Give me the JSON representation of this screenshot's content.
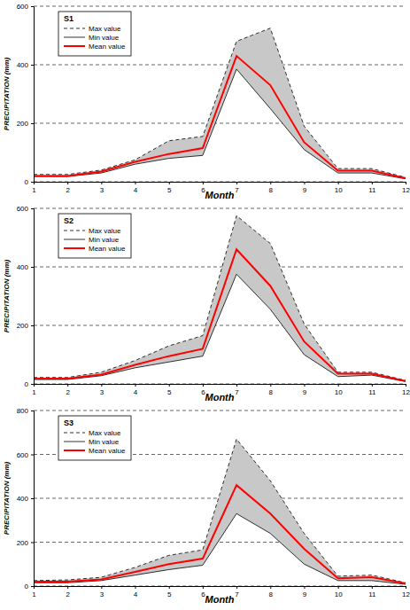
{
  "chart_data": [
    {
      "type": "line",
      "title": "S1",
      "x_label": "Month",
      "y_label": "PRECIPITATION (mm)",
      "x": [
        1,
        2,
        3,
        4,
        5,
        6,
        7,
        8,
        9,
        10,
        11,
        12
      ],
      "xlim": [
        1,
        12
      ],
      "xticks": [
        1,
        2,
        3,
        4,
        5,
        6,
        7,
        8,
        9,
        10,
        11,
        12
      ],
      "ylim": [
        0,
        600
      ],
      "yticks": [
        0,
        200,
        400,
        600
      ],
      "grid": true,
      "legend": "upper left",
      "series": [
        {
          "name": "Max value",
          "color": "#000000",
          "line_style": "dashed",
          "values": [
            25,
            25,
            40,
            75,
            140,
            155,
            480,
            525,
            190,
            45,
            45,
            15
          ]
        },
        {
          "name": "Min value",
          "color": "#000000",
          "line_style": "solid",
          "values": [
            18,
            18,
            30,
            60,
            80,
            90,
            385,
            250,
            110,
            30,
            30,
            10
          ]
        },
        {
          "name": "Mean value",
          "color": "#ff0000",
          "line_style": "solid",
          "values": [
            20,
            20,
            35,
            68,
            95,
            115,
            430,
            330,
            135,
            38,
            38,
            12
          ]
        }
      ]
    },
    {
      "type": "line",
      "title": "S2",
      "x_label": "Month",
      "y_label": "PRECIPITATION (mm)",
      "x": [
        1,
        2,
        3,
        4,
        5,
        6,
        7,
        8,
        9,
        10,
        11,
        12
      ],
      "xlim": [
        1,
        12
      ],
      "xticks": [
        1,
        2,
        3,
        4,
        5,
        6,
        7,
        8,
        9,
        10,
        11,
        12
      ],
      "ylim": [
        0,
        600
      ],
      "yticks": [
        0,
        200,
        400,
        600
      ],
      "grid": true,
      "legend": "upper left",
      "series": [
        {
          "name": "Max value",
          "color": "#000000",
          "line_style": "dashed",
          "values": [
            22,
            22,
            40,
            80,
            130,
            165,
            575,
            480,
            205,
            40,
            40,
            12
          ]
        },
        {
          "name": "Min value",
          "color": "#000000",
          "line_style": "solid",
          "values": [
            15,
            15,
            28,
            55,
            75,
            95,
            375,
            255,
            100,
            25,
            30,
            8
          ]
        },
        {
          "name": "Mean value",
          "color": "#ff0000",
          "line_style": "solid",
          "values": [
            18,
            18,
            32,
            65,
            95,
            120,
            460,
            335,
            145,
            35,
            35,
            10
          ]
        }
      ]
    },
    {
      "type": "line",
      "title": "S3",
      "x_label": "Month",
      "y_label": "PRECIPITATION (mm)",
      "x": [
        1,
        2,
        3,
        4,
        5,
        6,
        7,
        8,
        9,
        10,
        11,
        12
      ],
      "xlim": [
        1,
        12
      ],
      "xticks": [
        1,
        2,
        3,
        4,
        5,
        6,
        7,
        8,
        9,
        10,
        11,
        12
      ],
      "ylim": [
        0,
        800
      ],
      "yticks": [
        0,
        200,
        400,
        600,
        800
      ],
      "grid": true,
      "legend": "upper left",
      "series": [
        {
          "name": "Max value",
          "color": "#000000",
          "line_style": "dashed",
          "values": [
            25,
            28,
            40,
            85,
            140,
            165,
            670,
            480,
            240,
            45,
            50,
            15
          ]
        },
        {
          "name": "Min value",
          "color": "#000000",
          "line_style": "solid",
          "values": [
            15,
            15,
            25,
            50,
            75,
            95,
            330,
            240,
            100,
            25,
            25,
            8
          ]
        },
        {
          "name": "Mean value",
          "color": "#ff0000",
          "line_style": "solid",
          "values": [
            20,
            20,
            30,
            65,
            100,
            125,
            460,
            330,
            170,
            35,
            40,
            12
          ]
        }
      ]
    }
  ]
}
